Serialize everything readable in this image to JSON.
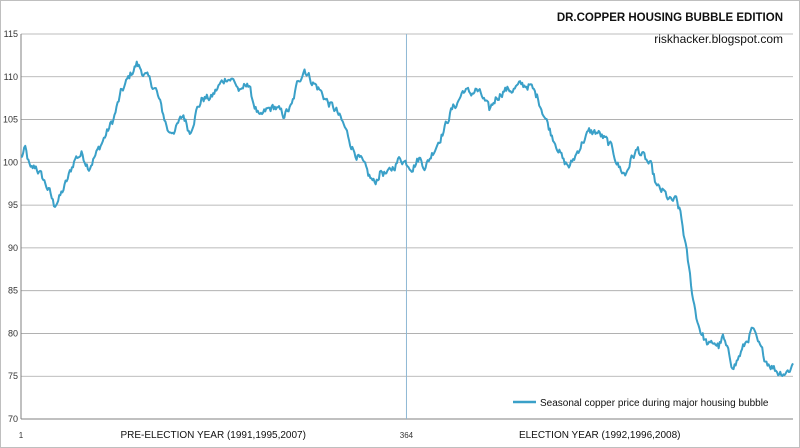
{
  "chart_data": {
    "type": "line",
    "title": "DR.COPPER HOUSING BUBBLE EDITION",
    "subtitle": "riskhacker.blogspot.com",
    "xlabel": "",
    "ylabel": "",
    "ylim": [
      70,
      115
    ],
    "yticks": [
      70,
      75,
      80,
      85,
      90,
      95,
      100,
      105,
      110,
      115
    ],
    "x_range": [
      1,
      728
    ],
    "x_tick_labels": [
      {
        "x": 1,
        "label": "1"
      },
      {
        "x": 364,
        "label": "364"
      }
    ],
    "segment_labels": [
      {
        "x_center": 182,
        "label": "PRE-ELECTION YEAR (1991,1995,2007)"
      },
      {
        "x_center": 546,
        "label": "ELECTION YEAR (1992,1996,2008)"
      }
    ],
    "divider_x": 364,
    "grid": true,
    "legend_position": "bottom-right",
    "colors": {
      "line": "#3aa0c8",
      "grid": "#a6a6a6",
      "divider": "#8fb8d4"
    },
    "series": [
      {
        "name": "Seasonal copper price during major housing bubble",
        "anchors": [
          [
            1,
            100.5
          ],
          [
            5,
            101.5
          ],
          [
            10,
            99
          ],
          [
            15,
            99.5
          ],
          [
            22,
            98
          ],
          [
            28,
            96.5
          ],
          [
            32,
            95
          ],
          [
            38,
            96
          ],
          [
            45,
            98
          ],
          [
            52,
            100.5
          ],
          [
            58,
            101
          ],
          [
            65,
            99.5
          ],
          [
            72,
            101
          ],
          [
            80,
            103
          ],
          [
            88,
            105
          ],
          [
            95,
            108
          ],
          [
            103,
            110
          ],
          [
            110,
            111.5
          ],
          [
            116,
            110.5
          ],
          [
            122,
            109.5
          ],
          [
            128,
            108.5
          ],
          [
            134,
            106
          ],
          [
            140,
            103.5
          ],
          [
            147,
            104
          ],
          [
            154,
            105.5
          ],
          [
            160,
            103.5
          ],
          [
            166,
            106
          ],
          [
            172,
            107.5
          ],
          [
            180,
            107.5
          ],
          [
            188,
            109
          ],
          [
            195,
            110
          ],
          [
            202,
            109.5
          ],
          [
            208,
            108
          ],
          [
            214,
            109.5
          ],
          [
            220,
            107
          ],
          [
            226,
            105
          ],
          [
            232,
            106
          ],
          [
            240,
            106.5
          ],
          [
            248,
            105.5
          ],
          [
            256,
            106.5
          ],
          [
            262,
            109.5
          ],
          [
            268,
            111
          ],
          [
            275,
            109.5
          ],
          [
            282,
            108.5
          ],
          [
            290,
            107
          ],
          [
            298,
            106
          ],
          [
            306,
            104
          ],
          [
            314,
            101.5
          ],
          [
            322,
            100
          ],
          [
            328,
            98.5
          ],
          [
            334,
            97.5
          ],
          [
            340,
            99
          ],
          [
            346,
            98.5
          ],
          [
            352,
            99.5
          ],
          [
            358,
            100.5
          ],
          [
            364,
            100
          ],
          [
            370,
            99.5
          ],
          [
            376,
            100.5
          ],
          [
            382,
            99.5
          ],
          [
            388,
            101
          ],
          [
            394,
            102.5
          ],
          [
            400,
            104
          ],
          [
            406,
            106
          ],
          [
            412,
            107
          ],
          [
            418,
            108.5
          ],
          [
            424,
            108
          ],
          [
            430,
            108.5
          ],
          [
            436,
            107.5
          ],
          [
            442,
            106
          ],
          [
            448,
            107.5
          ],
          [
            456,
            108.5
          ],
          [
            464,
            108.5
          ],
          [
            472,
            109
          ],
          [
            480,
            109
          ],
          [
            488,
            107.5
          ],
          [
            494,
            105.5
          ],
          [
            500,
            103.5
          ],
          [
            506,
            102
          ],
          [
            512,
            100
          ],
          [
            518,
            99.5
          ],
          [
            524,
            101
          ],
          [
            530,
            102.5
          ],
          [
            536,
            103.5
          ],
          [
            544,
            103.5
          ],
          [
            552,
            102.5
          ],
          [
            558,
            101.5
          ],
          [
            564,
            99.5
          ],
          [
            570,
            98.5
          ],
          [
            576,
            100.5
          ],
          [
            582,
            101.5
          ],
          [
            588,
            100.5
          ],
          [
            594,
            99.5
          ],
          [
            600,
            97
          ],
          [
            606,
            96.5
          ],
          [
            612,
            95.5
          ],
          [
            618,
            95.5
          ],
          [
            622,
            94
          ],
          [
            626,
            91
          ],
          [
            630,
            87.5
          ],
          [
            634,
            84
          ],
          [
            638,
            81.5
          ],
          [
            642,
            80
          ],
          [
            646,
            79
          ],
          [
            650,
            78.5
          ],
          [
            654,
            79
          ],
          [
            658,
            78.5
          ],
          [
            662,
            79.5
          ],
          [
            666,
            78
          ],
          [
            670,
            76.5
          ],
          [
            674,
            76.5
          ],
          [
            678,
            77.5
          ],
          [
            682,
            78.5
          ],
          [
            686,
            79.5
          ],
          [
            690,
            80.5
          ],
          [
            694,
            79
          ],
          [
            698,
            78
          ],
          [
            702,
            77
          ],
          [
            706,
            76.5
          ],
          [
            710,
            76
          ],
          [
            714,
            75.5
          ],
          [
            718,
            75.5
          ],
          [
            722,
            75.5
          ],
          [
            726,
            76
          ],
          [
            728,
            76.5
          ]
        ]
      }
    ]
  }
}
